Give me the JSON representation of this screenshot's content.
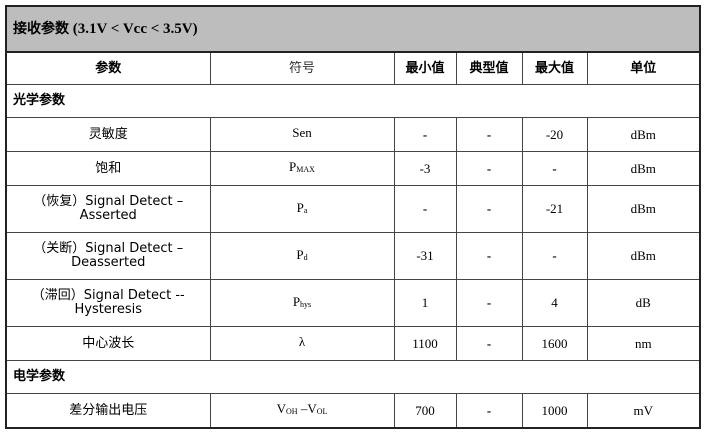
{
  "title": {
    "zh": "接收参数",
    "range": "(3.1V < Vcc < 3.5V)"
  },
  "headers": {
    "param": "参数",
    "symbol": "符号",
    "min": "最小值",
    "typ": "典型值",
    "max": "最大值",
    "unit": "单位"
  },
  "sections": {
    "optical": "光学参数",
    "electrical": "电学参数"
  },
  "rows": [
    {
      "param": "灵敏度",
      "sym": "Sen",
      "sub": "",
      "min": "-",
      "typ": "-",
      "max": "-20",
      "unit": "dBm"
    },
    {
      "param": "饱和",
      "sym": "P",
      "sub": "MAX",
      "min": "-3",
      "typ": "-",
      "max": "-",
      "unit": "dBm"
    },
    {
      "param": "（恢复）Signal Detect –",
      "param2": "Asserted",
      "sym": "P",
      "sub": "a",
      "min": "-",
      "typ": "-",
      "max": "-21",
      "unit": "dBm"
    },
    {
      "param": "（关断）Signal Detect –",
      "param2": "Deasserted",
      "sym": "P",
      "sub": "d",
      "min": "-31",
      "typ": "-",
      "max": "-",
      "unit": "dBm"
    },
    {
      "param": "（滞回）Signal Detect --",
      "param2": "Hysteresis",
      "sym": "P",
      "sub": "hys",
      "min": "1",
      "typ": "-",
      "max": "4",
      "unit": "dB"
    },
    {
      "param": "中心波长",
      "sym": "λ",
      "sub": "",
      "min": "1100",
      "typ": "-",
      "max": "1600",
      "unit": "nm"
    },
    {
      "param": "差分输出电压",
      "sym": "V",
      "sub": "OH",
      "sym2": " –V",
      "sub2": "OL",
      "min": "700",
      "typ": "-",
      "max": "1000",
      "unit": "mV"
    }
  ]
}
